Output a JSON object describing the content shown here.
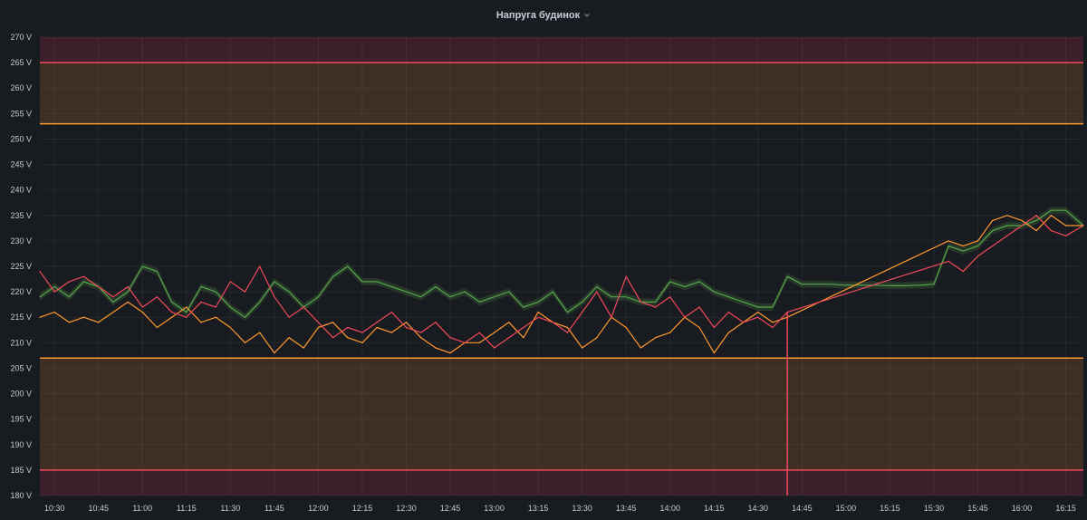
{
  "panel": {
    "title": "Напруга будинок"
  },
  "chart_data": {
    "type": "line",
    "title": "Напруга будинок",
    "xlabel": "",
    "ylabel": "",
    "y_unit": "V",
    "ylim": [
      180,
      270
    ],
    "x_range": [
      "10:25",
      "16:21"
    ],
    "grid": true,
    "legend": "none",
    "x_ticks": [
      "10:30",
      "10:45",
      "11:00",
      "11:15",
      "11:30",
      "11:45",
      "12:00",
      "12:15",
      "12:30",
      "12:45",
      "13:00",
      "13:15",
      "13:30",
      "13:45",
      "14:00",
      "14:15",
      "14:30",
      "14:45",
      "15:00",
      "15:15",
      "15:30",
      "15:45",
      "16:00",
      "16:15"
    ],
    "y_ticks": [
      "180 V",
      "185 V",
      "190 V",
      "195 V",
      "200 V",
      "205 V",
      "210 V",
      "215 V",
      "220 V",
      "225 V",
      "230 V",
      "235 V",
      "240 V",
      "245 V",
      "250 V",
      "255 V",
      "260 V",
      "265 V",
      "270 V"
    ],
    "threshold_bands": [
      {
        "from": 265,
        "to": 270,
        "color": "#3d1f2a"
      },
      {
        "from": 253,
        "to": 265,
        "color": "#3e2f24"
      },
      {
        "from": 185,
        "to": 207,
        "color": "#3e2f24"
      },
      {
        "from": 180,
        "to": 185,
        "color": "#3d1f2a"
      }
    ],
    "threshold_lines": [
      {
        "value": 265,
        "color": "#f2495c"
      },
      {
        "value": 253,
        "color": "#ff9830"
      },
      {
        "value": 207,
        "color": "#ff9830"
      },
      {
        "value": 185,
        "color": "#f2495c"
      }
    ],
    "series": [
      {
        "color": "#56a64b",
        "band_color": "#2a3d2c",
        "x": [
          "10:25",
          "10:30",
          "10:35",
          "10:40",
          "10:45",
          "10:50",
          "10:55",
          "11:00",
          "11:05",
          "11:10",
          "11:15",
          "11:20",
          "11:25",
          "11:30",
          "11:35",
          "11:40",
          "11:45",
          "11:50",
          "11:55",
          "12:00",
          "12:05",
          "12:10",
          "12:15",
          "12:20",
          "12:25",
          "12:30",
          "12:35",
          "12:40",
          "12:45",
          "12:50",
          "12:55",
          "13:00",
          "13:05",
          "13:10",
          "13:15",
          "13:20",
          "13:25",
          "13:30",
          "13:35",
          "13:40",
          "13:45",
          "13:50",
          "13:55",
          "14:00",
          "14:05",
          "14:10",
          "14:15",
          "14:20",
          "14:25",
          "14:30",
          "14:35",
          "14:40",
          "14:45",
          "14:50",
          "14:55",
          "15:00",
          "15:05",
          "15:10",
          "15:15",
          "15:20",
          "15:25",
          "15:30",
          "15:35",
          "15:40",
          "15:45",
          "15:50",
          "15:55",
          "16:00",
          "16:05",
          "16:10",
          "16:15",
          "16:21"
        ],
        "values": [
          219,
          221,
          219,
          222,
          221,
          218,
          220,
          225,
          224,
          218,
          216,
          221,
          220,
          217,
          215,
          218,
          222,
          220,
          217,
          219,
          223,
          225,
          222,
          222,
          221,
          220,
          219,
          221,
          219,
          220,
          218,
          219,
          220,
          217,
          218,
          220,
          216,
          218,
          221,
          219,
          219,
          218,
          218,
          222,
          221,
          222,
          220,
          219,
          218,
          217,
          217,
          223,
          221.5,
          221.5,
          221.5,
          221.3,
          221.3,
          221.3,
          221.2,
          221.2,
          221.3,
          221.5,
          229,
          228,
          229,
          232,
          233,
          233,
          234,
          236,
          236,
          233
        ]
      },
      {
        "color": "#ff9830",
        "x": [
          "10:25",
          "10:30",
          "10:35",
          "10:40",
          "10:45",
          "10:50",
          "10:55",
          "11:00",
          "11:05",
          "11:10",
          "11:15",
          "11:20",
          "11:25",
          "11:30",
          "11:35",
          "11:40",
          "11:45",
          "11:50",
          "11:55",
          "12:00",
          "12:05",
          "12:10",
          "12:15",
          "12:20",
          "12:25",
          "12:30",
          "12:35",
          "12:40",
          "12:45",
          "12:50",
          "12:55",
          "13:00",
          "13:05",
          "13:10",
          "13:15",
          "13:20",
          "13:25",
          "13:30",
          "13:35",
          "13:40",
          "13:45",
          "13:50",
          "13:55",
          "14:00",
          "14:05",
          "14:10",
          "14:15",
          "14:20",
          "14:25",
          "14:30",
          "14:35",
          "14:40",
          "15:35",
          "15:40",
          "15:45",
          "15:50",
          "15:55",
          "16:00",
          "16:05",
          "16:10",
          "16:15",
          "16:21"
        ],
        "values": [
          215,
          216,
          214,
          215,
          214,
          216,
          218,
          216,
          213,
          215,
          217,
          214,
          215,
          213,
          210,
          212,
          208,
          211,
          209,
          213,
          214,
          211,
          210,
          213,
          212,
          214,
          211,
          209,
          208,
          210,
          210,
          212,
          214,
          211,
          216,
          214,
          213,
          209,
          211,
          215,
          213,
          209,
          211,
          212,
          215,
          213,
          208,
          212,
          214,
          216,
          214,
          215,
          230,
          229,
          230,
          234,
          235,
          234,
          232,
          235,
          233,
          233
        ]
      },
      {
        "color": "#f2495c",
        "x": [
          "10:25",
          "10:30",
          "10:35",
          "10:40",
          "10:45",
          "10:50",
          "10:55",
          "11:00",
          "11:05",
          "11:10",
          "11:15",
          "11:20",
          "11:25",
          "11:30",
          "11:35",
          "11:40",
          "11:45",
          "11:50",
          "11:55",
          "12:00",
          "12:05",
          "12:10",
          "12:15",
          "12:20",
          "12:25",
          "12:30",
          "12:35",
          "12:40",
          "12:45",
          "12:50",
          "12:55",
          "13:00",
          "13:05",
          "13:10",
          "13:15",
          "13:20",
          "13:25",
          "13:30",
          "13:35",
          "13:40",
          "13:45",
          "13:50",
          "13:55",
          "14:00",
          "14:05",
          "14:10",
          "14:15",
          "14:20",
          "14:25",
          "14:30",
          "14:35",
          "14:40",
          "15:35",
          "15:40",
          "15:45",
          "15:50",
          "15:55",
          "16:00",
          "16:05",
          "16:10",
          "16:15",
          "16:21"
        ],
        "values": [
          224,
          220,
          222,
          223,
          221,
          219,
          221,
          217,
          219,
          216,
          215,
          218,
          217,
          222,
          220,
          225,
          219,
          215,
          217,
          214,
          211,
          213,
          212,
          214,
          216,
          213,
          212,
          214,
          211,
          210,
          212,
          209,
          211,
          213,
          215,
          214,
          212,
          216,
          220,
          215,
          223,
          218,
          217,
          219,
          215,
          217,
          213,
          216,
          214,
          215,
          213,
          216,
          226,
          224,
          227,
          229,
          231,
          233,
          235,
          232,
          231,
          233
        ]
      }
    ]
  }
}
